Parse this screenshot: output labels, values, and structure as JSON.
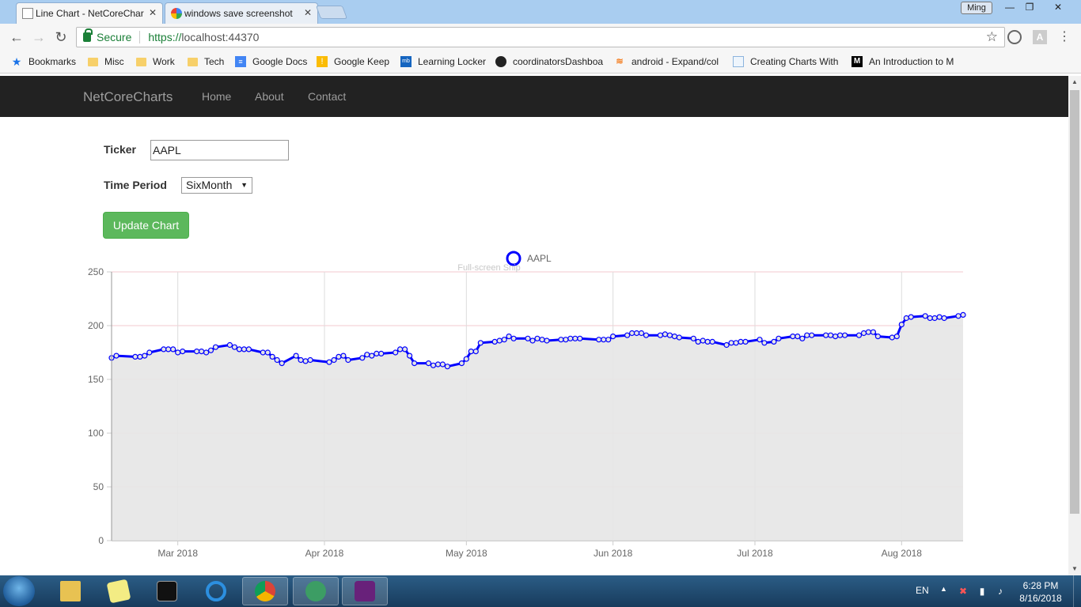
{
  "browser": {
    "tabs": [
      {
        "title": "Line Chart - NetCoreChar",
        "active": true
      },
      {
        "title": "windows save screenshot",
        "active": false
      }
    ],
    "user_chip": "Ming",
    "omnibox": {
      "secure_label": "Secure",
      "url_scheme": "https://",
      "url_rest": "localhost:44370"
    },
    "bookmarks": [
      {
        "label": "Bookmarks",
        "icon": "star-icon"
      },
      {
        "label": "Misc",
        "icon": "folder-icon"
      },
      {
        "label": "Work",
        "icon": "folder-icon"
      },
      {
        "label": "Tech",
        "icon": "folder-icon"
      },
      {
        "label": "Google Docs",
        "icon": "docs-icon"
      },
      {
        "label": "Google Keep",
        "icon": "keep-icon"
      },
      {
        "label": "Learning Locker",
        "icon": "mlb-icon"
      },
      {
        "label": "coordinatorsDashboa",
        "icon": "github-icon"
      },
      {
        "label": "android - Expand/col",
        "icon": "stackoverflow-icon"
      },
      {
        "label": "Creating Charts With",
        "icon": "page-icon"
      },
      {
        "label": "An Introduction to M",
        "icon": "medium-icon"
      }
    ]
  },
  "site": {
    "brand": "NetCoreCharts",
    "nav": [
      "Home",
      "About",
      "Contact"
    ]
  },
  "form": {
    "ticker_label": "Ticker",
    "ticker_value": "AAPL",
    "period_label": "Time Period",
    "period_value": "SixMonth",
    "update_button": "Update Chart"
  },
  "overlay_text": "Full-screen Snip",
  "chart_data": {
    "type": "area",
    "legend": {
      "position": "top-center",
      "entries": [
        "AAPL"
      ]
    },
    "ylim": [
      0,
      250
    ],
    "yticks": [
      0,
      50,
      100,
      150,
      200,
      250
    ],
    "xlim": [
      "2018-02-15",
      "2018-08-14"
    ],
    "xticks": [
      {
        "label": "Mar 2018",
        "date": "2018-03-01"
      },
      {
        "label": "Apr 2018",
        "date": "2018-04-01"
      },
      {
        "label": "May 2018",
        "date": "2018-05-01"
      },
      {
        "label": "Jun 2018",
        "date": "2018-06-01"
      },
      {
        "label": "Jul 2018",
        "date": "2018-07-01"
      },
      {
        "label": "Aug 2018",
        "date": "2018-08-01"
      }
    ],
    "grid": true,
    "series": [
      {
        "name": "AAPL",
        "color": "#0000ff",
        "fill": "#e5e5e5",
        "points": [
          [
            "2018-02-15",
            170
          ],
          [
            "2018-02-16",
            172
          ],
          [
            "2018-02-20",
            171
          ],
          [
            "2018-02-21",
            171
          ],
          [
            "2018-02-22",
            172
          ],
          [
            "2018-02-23",
            175
          ],
          [
            "2018-02-26",
            178
          ],
          [
            "2018-02-27",
            178
          ],
          [
            "2018-02-28",
            178
          ],
          [
            "2018-03-01",
            175
          ],
          [
            "2018-03-02",
            176
          ],
          [
            "2018-03-05",
            176
          ],
          [
            "2018-03-06",
            176
          ],
          [
            "2018-03-07",
            175
          ],
          [
            "2018-03-08",
            177
          ],
          [
            "2018-03-09",
            180
          ],
          [
            "2018-03-12",
            182
          ],
          [
            "2018-03-13",
            180
          ],
          [
            "2018-03-14",
            178
          ],
          [
            "2018-03-15",
            178
          ],
          [
            "2018-03-16",
            178
          ],
          [
            "2018-03-19",
            175
          ],
          [
            "2018-03-20",
            175
          ],
          [
            "2018-03-21",
            171
          ],
          [
            "2018-03-22",
            168
          ],
          [
            "2018-03-23",
            165
          ],
          [
            "2018-03-26",
            172
          ],
          [
            "2018-03-27",
            168
          ],
          [
            "2018-03-28",
            167
          ],
          [
            "2018-03-29",
            168
          ],
          [
            "2018-04-02",
            166
          ],
          [
            "2018-04-03",
            168
          ],
          [
            "2018-04-04",
            171
          ],
          [
            "2018-04-05",
            172
          ],
          [
            "2018-04-06",
            168
          ],
          [
            "2018-04-09",
            170
          ],
          [
            "2018-04-10",
            173
          ],
          [
            "2018-04-11",
            172
          ],
          [
            "2018-04-12",
            174
          ],
          [
            "2018-04-13",
            174
          ],
          [
            "2018-04-16",
            175
          ],
          [
            "2018-04-17",
            178
          ],
          [
            "2018-04-18",
            178
          ],
          [
            "2018-04-19",
            172
          ],
          [
            "2018-04-20",
            165
          ],
          [
            "2018-04-23",
            165
          ],
          [
            "2018-04-24",
            163
          ],
          [
            "2018-04-25",
            164
          ],
          [
            "2018-04-26",
            164
          ],
          [
            "2018-04-27",
            162
          ],
          [
            "2018-04-30",
            165
          ],
          [
            "2018-05-01",
            169
          ],
          [
            "2018-05-02",
            176
          ],
          [
            "2018-05-03",
            176
          ],
          [
            "2018-05-04",
            184
          ],
          [
            "2018-05-07",
            185
          ],
          [
            "2018-05-08",
            186
          ],
          [
            "2018-05-09",
            187
          ],
          [
            "2018-05-10",
            190
          ],
          [
            "2018-05-11",
            188
          ],
          [
            "2018-05-14",
            188
          ],
          [
            "2018-05-15",
            186
          ],
          [
            "2018-05-16",
            188
          ],
          [
            "2018-05-17",
            187
          ],
          [
            "2018-05-18",
            186
          ],
          [
            "2018-05-21",
            187
          ],
          [
            "2018-05-22",
            187
          ],
          [
            "2018-05-23",
            188
          ],
          [
            "2018-05-24",
            188
          ],
          [
            "2018-05-25",
            188
          ],
          [
            "2018-05-29",
            187
          ],
          [
            "2018-05-30",
            187
          ],
          [
            "2018-05-31",
            187
          ],
          [
            "2018-06-01",
            190
          ],
          [
            "2018-06-04",
            191
          ],
          [
            "2018-06-05",
            193
          ],
          [
            "2018-06-06",
            193
          ],
          [
            "2018-06-07",
            193
          ],
          [
            "2018-06-08",
            191
          ],
          [
            "2018-06-11",
            191
          ],
          [
            "2018-06-12",
            192
          ],
          [
            "2018-06-13",
            191
          ],
          [
            "2018-06-14",
            190
          ],
          [
            "2018-06-15",
            189
          ],
          [
            "2018-06-18",
            188
          ],
          [
            "2018-06-19",
            185
          ],
          [
            "2018-06-20",
            186
          ],
          [
            "2018-06-21",
            185
          ],
          [
            "2018-06-22",
            185
          ],
          [
            "2018-06-25",
            182
          ],
          [
            "2018-06-26",
            184
          ],
          [
            "2018-06-27",
            184
          ],
          [
            "2018-06-28",
            185
          ],
          [
            "2018-06-29",
            185
          ],
          [
            "2018-07-02",
            187
          ],
          [
            "2018-07-03",
            184
          ],
          [
            "2018-07-05",
            185
          ],
          [
            "2018-07-06",
            188
          ],
          [
            "2018-07-09",
            190
          ],
          [
            "2018-07-10",
            190
          ],
          [
            "2018-07-11",
            188
          ],
          [
            "2018-07-12",
            191
          ],
          [
            "2018-07-13",
            191
          ],
          [
            "2018-07-16",
            191
          ],
          [
            "2018-07-17",
            191
          ],
          [
            "2018-07-18",
            190
          ],
          [
            "2018-07-19",
            191
          ],
          [
            "2018-07-20",
            191
          ],
          [
            "2018-07-23",
            191
          ],
          [
            "2018-07-24",
            193
          ],
          [
            "2018-07-25",
            194
          ],
          [
            "2018-07-26",
            194
          ],
          [
            "2018-07-27",
            190
          ],
          [
            "2018-07-30",
            189
          ],
          [
            "2018-07-31",
            190
          ],
          [
            "2018-08-01",
            201
          ],
          [
            "2018-08-02",
            207
          ],
          [
            "2018-08-03",
            208
          ],
          [
            "2018-08-06",
            209
          ],
          [
            "2018-08-07",
            207
          ],
          [
            "2018-08-08",
            207
          ],
          [
            "2018-08-09",
            208
          ],
          [
            "2018-08-10",
            207
          ],
          [
            "2018-08-13",
            209
          ],
          [
            "2018-08-14",
            210
          ]
        ]
      }
    ]
  },
  "taskbar": {
    "apps": [
      {
        "name": "explorer-icon",
        "open": false
      },
      {
        "name": "sticky-notes-icon",
        "open": false
      },
      {
        "name": "cmd-icon",
        "open": false
      },
      {
        "name": "ie-icon",
        "open": false
      },
      {
        "name": "chrome-icon",
        "open": true
      },
      {
        "name": "atom-icon",
        "open": true
      },
      {
        "name": "visual-studio-icon",
        "open": true
      }
    ],
    "lang": "EN",
    "time": "6:28 PM",
    "date": "8/16/2018"
  }
}
